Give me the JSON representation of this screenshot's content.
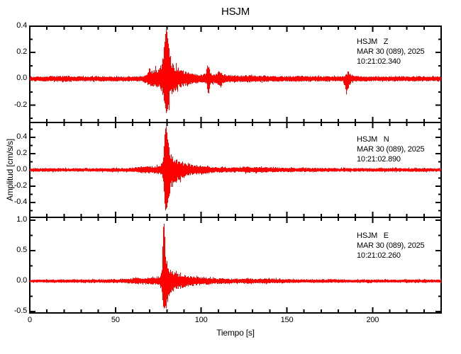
{
  "title": "HSJM",
  "colors": {
    "trace": "#ff0000",
    "axis": "#000000",
    "background": "#ffffff"
  },
  "chart_data": {
    "type": "line",
    "title": "HSJM",
    "xlabel": "Tiempo [s]",
    "ylabel": "Amplitud [cm/s/s]",
    "x_range": [
      0,
      240
    ],
    "x_major_ticks": [
      0,
      50,
      100,
      150,
      200
    ],
    "x_tick_labels": [
      "0",
      "50",
      "100",
      "150",
      "200"
    ],
    "x_minor_step": 10,
    "grid": "off",
    "panels": [
      {
        "station": "HSJM",
        "component": "Z",
        "annotation_lines": [
          "HSJM   Z",
          "MAR 30 (089), 2025",
          "10:21:02.340"
        ],
        "ylim": [
          -0.331,
          0.4
        ],
        "y_major_ticks": [
          0.4,
          0.2,
          0.0,
          -0.2
        ],
        "y_tick_labels": [
          "0.4",
          "0.2",
          "0.0",
          "-0.2"
        ],
        "y_minor_ticks": [
          0.3,
          0.1,
          -0.1,
          -0.3
        ],
        "peak_up": 0.38,
        "peak_down": -0.27,
        "event_time_s": 80,
        "envelope": [
          [
            0,
            0.018,
            0.018
          ],
          [
            12,
            0.02,
            0.02
          ],
          [
            20,
            0.026,
            0.024
          ],
          [
            26,
            0.02,
            0.02
          ],
          [
            40,
            0.022,
            0.02
          ],
          [
            55,
            0.02,
            0.02
          ],
          [
            66,
            0.022,
            0.022
          ],
          [
            69,
            0.05,
            0.045
          ],
          [
            70.5,
            0.075,
            0.065
          ],
          [
            72,
            0.06,
            0.055
          ],
          [
            73.5,
            0.08,
            0.07
          ],
          [
            75,
            0.07,
            0.06
          ],
          [
            76.5,
            0.1,
            0.085
          ],
          [
            78,
            0.17,
            0.13
          ],
          [
            79,
            0.3,
            0.2
          ],
          [
            79.8,
            0.38,
            0.27
          ],
          [
            80.6,
            0.3,
            0.22
          ],
          [
            81.5,
            0.2,
            0.16
          ],
          [
            83,
            0.13,
            0.11
          ],
          [
            85,
            0.1,
            0.09
          ],
          [
            88,
            0.075,
            0.065
          ],
          [
            91,
            0.055,
            0.05
          ],
          [
            95,
            0.042,
            0.038
          ],
          [
            99,
            0.035,
            0.032
          ],
          [
            103,
            0.04,
            0.036
          ],
          [
            104.3,
            0.15,
            0.14
          ],
          [
            105.2,
            0.05,
            0.045
          ],
          [
            107,
            0.035,
            0.032
          ],
          [
            109.5,
            0.04,
            0.036
          ],
          [
            110.8,
            0.075,
            0.068
          ],
          [
            112,
            0.04,
            0.036
          ],
          [
            116,
            0.03,
            0.028
          ],
          [
            122,
            0.027,
            0.025
          ],
          [
            128,
            0.03,
            0.028
          ],
          [
            133,
            0.026,
            0.024
          ],
          [
            140,
            0.023,
            0.022
          ],
          [
            150,
            0.022,
            0.02
          ],
          [
            158,
            0.025,
            0.023
          ],
          [
            165,
            0.022,
            0.02
          ],
          [
            175,
            0.021,
            0.02
          ],
          [
            183,
            0.023,
            0.022
          ],
          [
            185,
            0.04,
            0.13
          ],
          [
            185.8,
            0.06,
            0.08
          ],
          [
            187.5,
            0.025,
            0.024
          ],
          [
            195,
            0.02,
            0.019
          ],
          [
            210,
            0.02,
            0.019
          ],
          [
            225,
            0.021,
            0.02
          ],
          [
            240,
            0.019,
            0.018
          ]
        ]
      },
      {
        "station": "HSJM",
        "component": "N",
        "annotation_lines": [
          "HSJM   N",
          "MAR 30 (089), 2025",
          "10:21:02.890"
        ],
        "ylim": [
          -0.583,
          0.583
        ],
        "y_major_ticks": [
          0.4,
          0.2,
          0.0,
          -0.2,
          -0.4
        ],
        "y_tick_labels": [
          "0.4",
          "0.2",
          "0.0",
          "-0.2",
          "-0.4"
        ],
        "y_minor_ticks": [
          0.5,
          0.3,
          0.1,
          -0.1,
          -0.3,
          -0.5
        ],
        "peak_up": 0.57,
        "peak_down": -0.52,
        "event_time_s": 79,
        "envelope": [
          [
            0,
            0.022,
            0.022
          ],
          [
            15,
            0.024,
            0.024
          ],
          [
            30,
            0.022,
            0.022
          ],
          [
            45,
            0.024,
            0.024
          ],
          [
            58,
            0.025,
            0.025
          ],
          [
            63,
            0.035,
            0.032
          ],
          [
            66,
            0.05,
            0.045
          ],
          [
            68,
            0.045,
            0.04
          ],
          [
            70,
            0.05,
            0.045
          ],
          [
            72,
            0.045,
            0.042
          ],
          [
            74,
            0.05,
            0.046
          ],
          [
            76,
            0.06,
            0.055
          ],
          [
            77.5,
            0.1,
            0.09
          ],
          [
            78.6,
            0.3,
            0.28
          ],
          [
            79.3,
            0.57,
            0.52
          ],
          [
            80,
            0.45,
            0.48
          ],
          [
            80.8,
            0.32,
            0.36
          ],
          [
            82,
            0.22,
            0.26
          ],
          [
            84,
            0.16,
            0.19
          ],
          [
            86,
            0.13,
            0.15
          ],
          [
            88,
            0.1,
            0.12
          ],
          [
            91,
            0.08,
            0.09
          ],
          [
            94,
            0.065,
            0.07
          ],
          [
            98,
            0.05,
            0.055
          ],
          [
            102,
            0.045,
            0.05
          ],
          [
            103.5,
            0.06,
            0.055
          ],
          [
            105,
            0.045,
            0.042
          ],
          [
            108,
            0.04,
            0.038
          ],
          [
            112,
            0.035,
            0.034
          ],
          [
            117,
            0.032,
            0.03
          ],
          [
            123,
            0.034,
            0.032
          ],
          [
            127,
            0.045,
            0.04
          ],
          [
            130,
            0.034,
            0.032
          ],
          [
            136,
            0.04,
            0.036
          ],
          [
            140,
            0.034,
            0.03
          ],
          [
            146,
            0.03,
            0.028
          ],
          [
            154,
            0.027,
            0.026
          ],
          [
            165,
            0.026,
            0.025
          ],
          [
            178,
            0.025,
            0.024
          ],
          [
            192,
            0.024,
            0.023
          ],
          [
            210,
            0.024,
            0.023
          ],
          [
            225,
            0.025,
            0.024
          ],
          [
            240,
            0.022,
            0.022
          ]
        ]
      },
      {
        "station": "HSJM",
        "component": "E",
        "annotation_lines": [
          "HSJM   E",
          "MAR 30 (089), 2025",
          "10:21:02.260"
        ],
        "ylim": [
          -0.523,
          1.047
        ],
        "y_major_ticks": [
          1.0,
          0.5,
          0.0,
          -0.5
        ],
        "y_tick_labels": [
          "1.0",
          "0.5",
          "0.0",
          "-0.5"
        ],
        "y_minor_ticks": [
          0.75,
          0.25,
          -0.25
        ],
        "peak_up": 1.0,
        "peak_down": -0.47,
        "event_time_s": 78.5,
        "envelope": [
          [
            0,
            0.026,
            0.025
          ],
          [
            15,
            0.028,
            0.027
          ],
          [
            30,
            0.03,
            0.028
          ],
          [
            45,
            0.032,
            0.03
          ],
          [
            55,
            0.036,
            0.034
          ],
          [
            60,
            0.05,
            0.045
          ],
          [
            63,
            0.058,
            0.052
          ],
          [
            66,
            0.052,
            0.048
          ],
          [
            69,
            0.058,
            0.054
          ],
          [
            72,
            0.065,
            0.06
          ],
          [
            74.5,
            0.075,
            0.068
          ],
          [
            76,
            0.1,
            0.09
          ],
          [
            77.3,
            0.22,
            0.18
          ],
          [
            78.3,
            1.0,
            0.47
          ],
          [
            79.1,
            0.4,
            0.42
          ],
          [
            80,
            0.25,
            0.28
          ],
          [
            81.5,
            0.2,
            0.22
          ],
          [
            83.5,
            0.16,
            0.18
          ],
          [
            86,
            0.13,
            0.14
          ],
          [
            89,
            0.11,
            0.12
          ],
          [
            92,
            0.09,
            0.1
          ],
          [
            95,
            0.08,
            0.085
          ],
          [
            99,
            0.065,
            0.07
          ],
          [
            103,
            0.055,
            0.06
          ],
          [
            104.5,
            0.075,
            0.07
          ],
          [
            106,
            0.052,
            0.05
          ],
          [
            110,
            0.05,
            0.048
          ],
          [
            111.5,
            0.06,
            0.055
          ],
          [
            113,
            0.048,
            0.046
          ],
          [
            118,
            0.042,
            0.04
          ],
          [
            124,
            0.04,
            0.038
          ],
          [
            128,
            0.048,
            0.044
          ],
          [
            132,
            0.04,
            0.038
          ],
          [
            138,
            0.044,
            0.04
          ],
          [
            143,
            0.04,
            0.037
          ],
          [
            148,
            0.036,
            0.034
          ],
          [
            155,
            0.032,
            0.03
          ],
          [
            165,
            0.03,
            0.029
          ],
          [
            178,
            0.029,
            0.028
          ],
          [
            192,
            0.028,
            0.027
          ],
          [
            210,
            0.028,
            0.027
          ],
          [
            225,
            0.029,
            0.028
          ],
          [
            240,
            0.026,
            0.025
          ]
        ]
      }
    ]
  }
}
